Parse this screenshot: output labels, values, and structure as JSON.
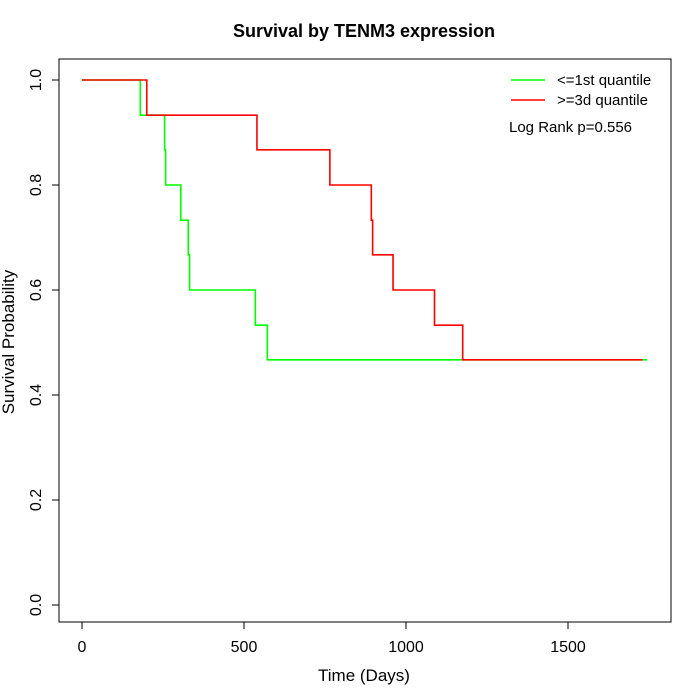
{
  "chart_data": {
    "type": "line",
    "title": "Survival by TENM3 expression",
    "xlabel": "Time (Days)",
    "ylabel": "Survival Probability",
    "xlim": [
      0,
      1750
    ],
    "ylim": [
      0,
      1
    ],
    "x_ticks": [
      0,
      500,
      1000,
      1500
    ],
    "x_tick_labels": [
      "0",
      "500",
      "1000",
      "1500"
    ],
    "y_ticks": [
      0,
      0.2,
      0.4,
      0.6,
      0.8,
      1.0
    ],
    "y_tick_labels": [
      "0.0",
      "0.2",
      "0.4",
      "0.6",
      "0.8",
      "1.0"
    ],
    "grid": false,
    "legend_position": "top-right",
    "annotation": "Log Rank p=0.556",
    "series": [
      {
        "name": "<=1st quantile",
        "color": "#00ff00",
        "step": true,
        "x": [
          0,
          180,
          255,
          258,
          305,
          328,
          332,
          535,
          572,
          1745
        ],
        "y": [
          1.0,
          0.933,
          0.867,
          0.8,
          0.733,
          0.667,
          0.6,
          0.533,
          0.467,
          0.467
        ]
      },
      {
        "name": ">=3d quantile",
        "color": "#ff0000",
        "step": true,
        "x": [
          0,
          200,
          540,
          765,
          893,
          897,
          960,
          1088,
          1175,
          1730
        ],
        "y": [
          1.0,
          0.933,
          0.867,
          0.8,
          0.733,
          0.667,
          0.6,
          0.533,
          0.467,
          0.467
        ]
      }
    ]
  }
}
